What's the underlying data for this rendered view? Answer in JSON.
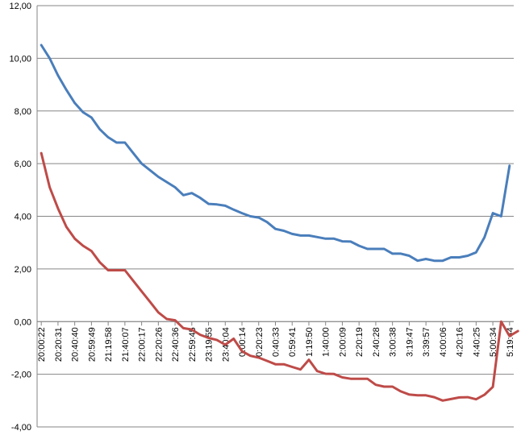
{
  "chart_data": {
    "type": "line",
    "title": "",
    "xlabel": "",
    "ylabel": "",
    "ylim": [
      -4,
      12
    ],
    "y_ticks": [
      "12,00",
      "10,00",
      "8,00",
      "6,00",
      "4,00",
      "2,00",
      "0,00",
      "-2,00",
      "-4,00"
    ],
    "grid": "horizontal",
    "legend": "none",
    "x_tick_labels": [
      "20:00:22",
      "20:20:31",
      "20:40:40",
      "20:59:49",
      "21:19:58",
      "21:40:07",
      "22:00:17",
      "22:20:26",
      "22:40:36",
      "22:59:45",
      "23:19:55",
      "23:40:04",
      "0:00:14",
      "0:20:23",
      "0:40:33",
      "0:59:41",
      "1:19:50",
      "1:40:00",
      "2:00:09",
      "2:20:19",
      "2:40:28",
      "3:00:38",
      "3:19:47",
      "3:39:57",
      "4:00:06",
      "4:20:16",
      "4:40:25",
      "5:00:34",
      "5:19:44"
    ],
    "series": [
      {
        "color": "#4a7ebb",
        "values": [
          10.5,
          10.0,
          9.35,
          8.8,
          8.3,
          7.95,
          7.75,
          7.3,
          7.0,
          6.8,
          6.8,
          6.4,
          6.0,
          5.75,
          5.5,
          5.3,
          5.1,
          4.8,
          4.88,
          4.7,
          4.47,
          4.45,
          4.4,
          4.25,
          4.12,
          4.0,
          3.95,
          3.78,
          3.52,
          3.45,
          3.33,
          3.27,
          3.27,
          3.21,
          3.15,
          3.15,
          3.05,
          3.04,
          2.88,
          2.76,
          2.76,
          2.76,
          2.58,
          2.58,
          2.5,
          2.31,
          2.38,
          2.31,
          2.31,
          2.44,
          2.44,
          2.5,
          2.63,
          3.2,
          4.12,
          4.0,
          5.92
        ]
      },
      {
        "color": "#be4b48",
        "values": [
          6.4,
          5.1,
          4.3,
          3.6,
          3.15,
          2.88,
          2.68,
          2.25,
          1.95,
          1.95,
          1.95,
          1.55,
          1.15,
          0.75,
          0.35,
          0.1,
          0.05,
          -0.25,
          -0.3,
          -0.5,
          -0.62,
          -0.7,
          -0.88,
          -0.65,
          -1.12,
          -1.3,
          -1.37,
          -1.49,
          -1.62,
          -1.62,
          -1.72,
          -1.82,
          -1.45,
          -1.88,
          -1.98,
          -1.99,
          -2.12,
          -2.17,
          -2.17,
          -2.17,
          -2.4,
          -2.47,
          -2.47,
          -2.65,
          -2.77,
          -2.8,
          -2.8,
          -2.87,
          -3.0,
          -2.94,
          -2.88,
          -2.87,
          -2.95,
          -2.78,
          -2.48,
          0.0,
          -0.55,
          -0.36
        ]
      }
    ]
  }
}
